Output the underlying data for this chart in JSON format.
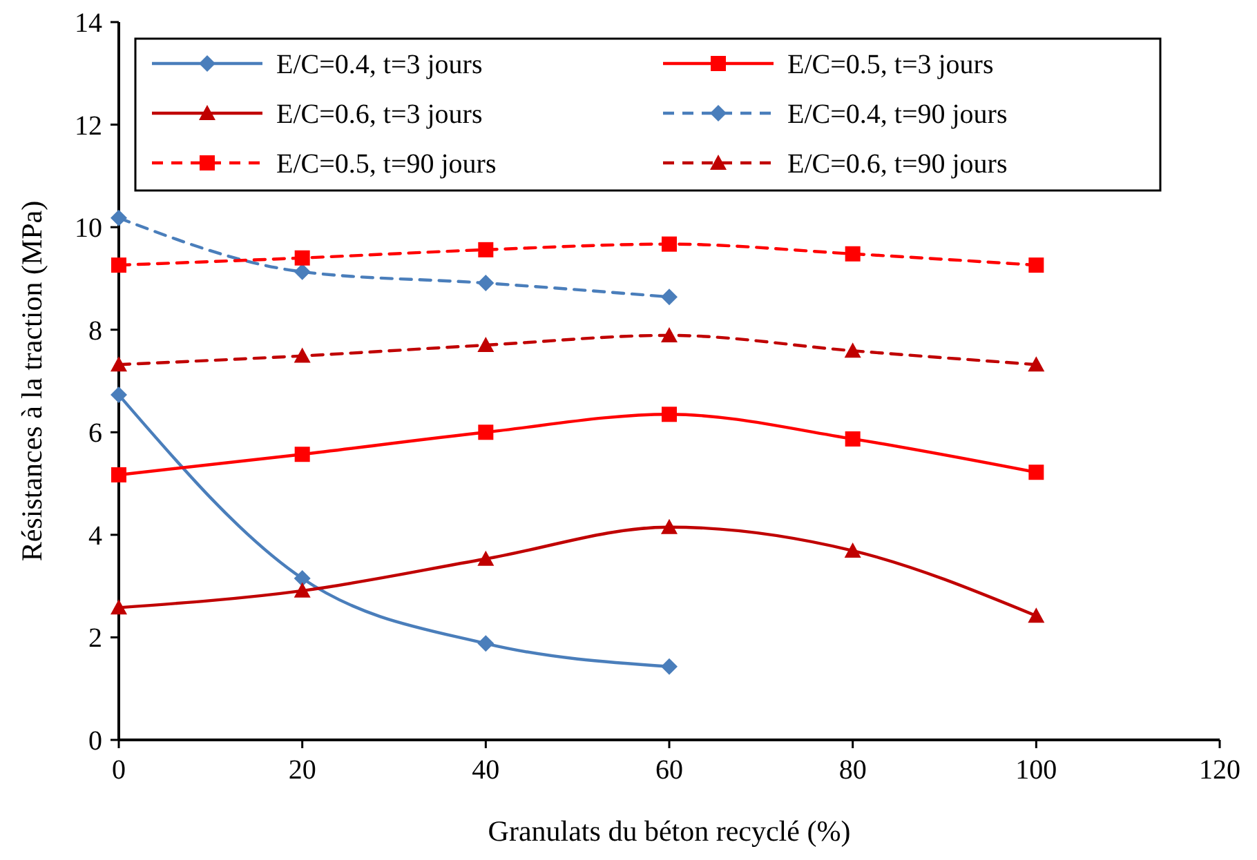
{
  "chart_data": {
    "type": "line",
    "xlabel": "Granulats du béton recyclé (%)",
    "ylabel": "Résistances à la traction (MPa)",
    "xlim": [
      0,
      120
    ],
    "xticks": [
      0,
      20,
      40,
      60,
      80,
      100,
      120
    ],
    "ylim": [
      0,
      14
    ],
    "yticks": [
      0,
      2,
      4,
      6,
      8,
      10,
      12,
      14
    ],
    "grid": false,
    "legend": "top",
    "series": [
      {
        "name": "E/C=0.4, t=3 jours",
        "color": "#4a7ebb",
        "marker": "diamond",
        "line_style": "solid",
        "x": [
          0,
          20,
          40,
          60
        ],
        "values": [
          6.73,
          3.15,
          1.88,
          1.43
        ]
      },
      {
        "name": "E/C=0.5, t=3 jours",
        "color": "#ff0000",
        "marker": "square",
        "line_style": "solid",
        "x": [
          0,
          20,
          40,
          60,
          80,
          100
        ],
        "values": [
          5.17,
          5.57,
          6.0,
          6.35,
          5.87,
          5.22
        ]
      },
      {
        "name": "E/C=0.6, t=3 jours",
        "color": "#c00000",
        "marker": "triangle",
        "line_style": "solid",
        "x": [
          0,
          20,
          40,
          60,
          80,
          100
        ],
        "values": [
          2.58,
          2.91,
          3.53,
          4.15,
          3.69,
          2.42
        ]
      },
      {
        "name": "E/C=0.4, t=90 jours",
        "color": "#4a7ebb",
        "marker": "diamond",
        "line_style": "dashed",
        "x": [
          0,
          20,
          40,
          60
        ],
        "values": [
          10.18,
          9.13,
          8.91,
          8.64
        ]
      },
      {
        "name": "E/C=0.5, t=90 jours",
        "color": "#ff0000",
        "marker": "square",
        "line_style": "dashed",
        "x": [
          0,
          20,
          40,
          60,
          80,
          100
        ],
        "values": [
          9.26,
          9.4,
          9.56,
          9.67,
          9.48,
          9.26
        ]
      },
      {
        "name": "E/C=0.6, t=90 jours",
        "color": "#c00000",
        "marker": "triangle",
        "line_style": "dashed",
        "x": [
          0,
          20,
          40,
          60,
          80,
          100
        ],
        "values": [
          7.32,
          7.49,
          7.7,
          7.89,
          7.59,
          7.32
        ]
      }
    ]
  }
}
